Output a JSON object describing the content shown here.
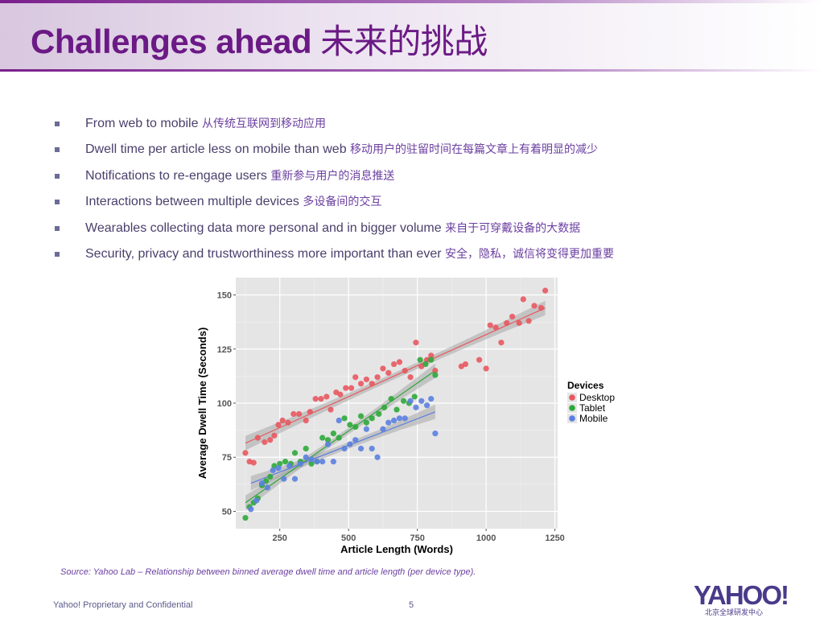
{
  "slide": {
    "title_en": "Challenges ahead",
    "title_zh": "未来的挑战",
    "bullets": [
      {
        "en": "From web to mobile",
        "zh": "从传统互联网到移动应用"
      },
      {
        "en": "Dwell time per article less on mobile than web",
        "zh": "移动用户的驻留时间在每篇文章上有着明显的减少"
      },
      {
        "en": "Notifications to re-engage users",
        "zh": "重新参与用户的消息推送"
      },
      {
        "en": "Interactions between multiple devices",
        "zh": "多设备间的交互"
      },
      {
        "en": "Wearables collecting data more personal and in bigger volume",
        "zh": "来自于可穿戴设备的大数据"
      },
      {
        "en": "Security, privacy and trustworthiness more important than ever",
        "zh": "安全，隐私，诚信将变得更加重要"
      }
    ],
    "source": "Source: Yahoo Lab – Relationship between binned average dwell time and article length (per device type).",
    "footer": "Yahoo! Proprietary and Confidential",
    "page_number": "5",
    "logo_text": "YAHOO!",
    "logo_subtext": "北京全球研发中心"
  },
  "colors": {
    "title": "#6b1a85",
    "desktop": "#e8585f",
    "tablet": "#2ea83a",
    "mobile": "#5b7fe0",
    "plot_bg": "#e5e5e5"
  },
  "chart_data": {
    "type": "scatter",
    "xlabel": "Article Length (Words)",
    "ylabel": "Average Dwell Time (Seconds)",
    "xlim": [
      90,
      1260
    ],
    "ylim": [
      42,
      158
    ],
    "xticks": [
      250,
      500,
      750,
      1000,
      1250
    ],
    "yticks": [
      50,
      75,
      100,
      125,
      150
    ],
    "grid": true,
    "legend_title": "Devices",
    "legend_position": "right",
    "series": [
      {
        "name": "Desktop",
        "x": [
          125,
          140,
          155,
          170,
          195,
          215,
          230,
          245,
          260,
          280,
          300,
          320,
          345,
          360,
          380,
          400,
          420,
          435,
          455,
          470,
          490,
          510,
          525,
          545,
          565,
          585,
          605,
          625,
          645,
          665,
          685,
          705,
          725,
          745,
          765,
          785,
          800,
          815,
          910,
          925,
          975,
          1000,
          1015,
          1035,
          1055,
          1075,
          1095,
          1120,
          1135,
          1155,
          1175,
          1200,
          1215
        ],
        "y": [
          77,
          73,
          72.5,
          84,
          82,
          83,
          85,
          90,
          92,
          91,
          95,
          95,
          92,
          96,
          102,
          102,
          103,
          97,
          105,
          104,
          107,
          107,
          112,
          109,
          111,
          109,
          112,
          116,
          114,
          118,
          119,
          115,
          112,
          128,
          117,
          120,
          122,
          115,
          117,
          118,
          120,
          116,
          136,
          135,
          128,
          137,
          140,
          137,
          148,
          138,
          145,
          144,
          152
        ],
        "trend": {
          "x0": 125,
          "y0": 81.5,
          "x1": 1215,
          "y1": 144
        }
      },
      {
        "name": "Tablet",
        "x": [
          125,
          140,
          155,
          170,
          185,
          200,
          215,
          230,
          250,
          270,
          290,
          305,
          325,
          345,
          365,
          385,
          405,
          425,
          445,
          465,
          485,
          505,
          525,
          545,
          565,
          585,
          610,
          630,
          655,
          675,
          700,
          720,
          740,
          760,
          780,
          800,
          815
        ],
        "y": [
          47,
          52,
          54,
          56,
          62,
          64,
          66,
          71,
          72,
          73,
          72,
          77,
          73,
          79,
          72,
          73,
          84,
          83,
          86,
          84,
          93,
          90,
          89,
          94,
          91,
          93,
          95,
          98,
          102,
          97,
          101,
          100,
          103,
          120,
          118,
          120,
          113
        ],
        "trend": {
          "x0": 125,
          "y0": 54,
          "x1": 815,
          "y1": 115
        }
      },
      {
        "name": "Mobile",
        "x": [
          145,
          165,
          185,
          205,
          225,
          245,
          265,
          285,
          305,
          325,
          345,
          365,
          385,
          405,
          425,
          445,
          465,
          485,
          505,
          525,
          545,
          565,
          585,
          605,
          625,
          645,
          665,
          685,
          705,
          725,
          745,
          765,
          785,
          800,
          815
        ],
        "y": [
          51,
          55,
          63,
          61,
          69,
          70,
          65,
          71,
          65,
          72,
          75,
          74,
          73,
          73,
          81,
          73,
          92,
          79,
          81,
          83,
          79,
          88,
          79,
          75,
          88,
          91,
          92,
          93,
          93,
          101,
          98,
          101,
          99,
          102,
          86
        ],
        "trend": {
          "x0": 145,
          "y0": 63,
          "x1": 815,
          "y1": 96
        }
      }
    ]
  }
}
